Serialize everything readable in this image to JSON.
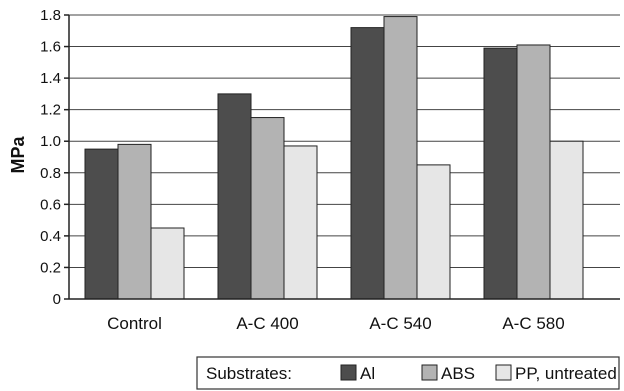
{
  "chart_data": {
    "type": "bar",
    "categories": [
      "Control",
      "A-C 400",
      "A-C 540",
      "A-C 580"
    ],
    "series": [
      {
        "name": "Al",
        "color": "#4d4d4d",
        "values": [
          0.95,
          1.3,
          1.72,
          1.59
        ]
      },
      {
        "name": "ABS",
        "color": "#b3b3b3",
        "values": [
          0.98,
          1.15,
          1.79,
          1.61
        ]
      },
      {
        "name": "PP, untreated",
        "color": "#e6e6e6",
        "values": [
          0.45,
          0.97,
          0.85,
          1.0
        ]
      }
    ],
    "ylabel": "MPa",
    "ylim": [
      0,
      1.8
    ],
    "yticks": [
      "0",
      "0.2",
      "0.4",
      "0.6",
      "0.8",
      "1.0",
      "1.2",
      "1.4",
      "1.6",
      "1.8"
    ],
    "grid": true,
    "legend": {
      "title": "Substrates:",
      "placement": "bottom-right"
    }
  }
}
